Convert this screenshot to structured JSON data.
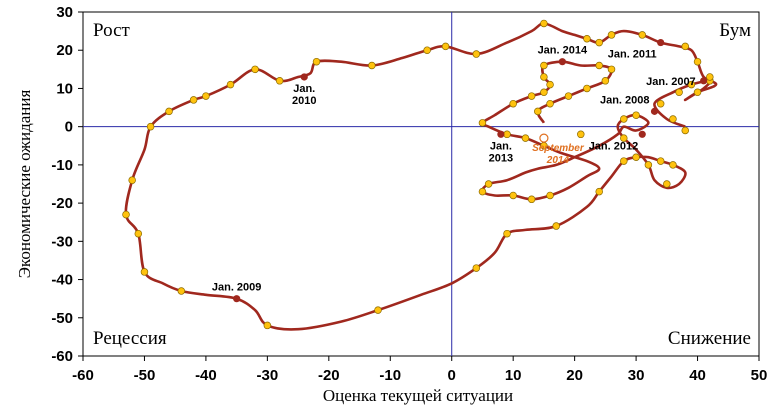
{
  "chart_data": {
    "type": "line",
    "xlabel": "Оценка текущей ситуации",
    "ylabel": "Экономические ожидания",
    "xlim": [
      -60,
      50
    ],
    "ylim": [
      -60,
      30
    ],
    "xticks": [
      -60,
      -50,
      -40,
      -30,
      -20,
      -10,
      0,
      10,
      20,
      30,
      40,
      50
    ],
    "yticks": [
      -60,
      -50,
      -40,
      -30,
      -20,
      -10,
      0,
      10,
      20,
      30
    ],
    "quadrants": [
      {
        "key": "q-tl",
        "label": "Рост"
      },
      {
        "key": "q-tr",
        "label": "Бум"
      },
      {
        "key": "q-bl",
        "label": "Рецессия"
      },
      {
        "key": "q-br",
        "label": "Снижение"
      }
    ],
    "colors": {
      "line": "#A0281E",
      "marker": "#FFC20E",
      "marker_edge": "#8A6A00",
      "key_marker": "#A0281E",
      "axis_cross": "#2B2BA8",
      "highlight": "#E07020"
    },
    "grid": false,
    "series": [
      {
        "points": [
          [
            38,
            0
          ],
          [
            35,
            2
          ],
          [
            33,
            6
          ],
          [
            36,
            9
          ],
          [
            39,
            11
          ],
          [
            42,
            12
          ],
          [
            41,
            10
          ],
          [
            39,
            8
          ],
          [
            38,
            7
          ],
          [
            40,
            9
          ],
          [
            43,
            11
          ],
          [
            41,
            13
          ],
          [
            40,
            17
          ],
          [
            39,
            20
          ],
          [
            37,
            21
          ],
          [
            34,
            22
          ],
          [
            31,
            24
          ],
          [
            28,
            25
          ],
          [
            26,
            24
          ],
          [
            24,
            22
          ],
          [
            22,
            23
          ],
          [
            20,
            24
          ],
          [
            18,
            25
          ],
          [
            15,
            27
          ],
          [
            13,
            25
          ],
          [
            9,
            22
          ],
          [
            4,
            19
          ],
          [
            -1,
            21
          ],
          [
            -4,
            20
          ],
          [
            -8,
            18
          ],
          [
            -13,
            16
          ],
          [
            -18,
            17
          ],
          [
            -22,
            17
          ],
          [
            -23,
            14
          ],
          [
            -25,
            13
          ],
          [
            -28,
            12
          ],
          [
            -32,
            15
          ],
          [
            -36,
            11
          ],
          [
            -40,
            8
          ],
          [
            -42,
            7
          ],
          [
            -46,
            4
          ],
          [
            -49,
            0
          ],
          [
            -50,
            -6
          ],
          [
            -52,
            -14
          ],
          [
            -53,
            -23
          ],
          [
            -51,
            -28
          ],
          [
            -50,
            -38
          ],
          [
            -47,
            -41
          ],
          [
            -44,
            -43
          ],
          [
            -40,
            -44
          ],
          [
            -35,
            -45
          ],
          [
            -32,
            -48
          ],
          [
            -30,
            -52
          ],
          [
            -25,
            -53
          ],
          [
            -18,
            -51
          ],
          [
            -12,
            -48
          ],
          [
            -5,
            -44
          ],
          [
            0,
            -41
          ],
          [
            4,
            -37
          ],
          [
            7,
            -33
          ],
          [
            9,
            -28
          ],
          [
            12,
            -27
          ],
          [
            17,
            -26
          ],
          [
            22,
            -21
          ],
          [
            24,
            -17
          ],
          [
            26,
            -13
          ],
          [
            28,
            -9
          ],
          [
            30,
            -8
          ],
          [
            32,
            -8
          ],
          [
            34,
            -9
          ],
          [
            36,
            -10
          ],
          [
            38,
            -12
          ],
          [
            37,
            -15
          ],
          [
            35,
            -16
          ],
          [
            33,
            -14
          ],
          [
            32,
            -10
          ],
          [
            30,
            -6
          ],
          [
            28,
            -3
          ],
          [
            27,
            0
          ],
          [
            28,
            2
          ],
          [
            30,
            3
          ],
          [
            32,
            1
          ],
          [
            30,
            -1
          ],
          [
            28,
            0
          ],
          [
            27,
            -2
          ],
          [
            24,
            -5
          ],
          [
            20,
            -8
          ],
          [
            17,
            -10
          ],
          [
            14,
            -11
          ],
          [
            12,
            -12
          ],
          [
            9,
            -14
          ],
          [
            6,
            -15
          ],
          [
            5,
            -17
          ],
          [
            7,
            -18
          ],
          [
            10,
            -18
          ],
          [
            13,
            -19
          ],
          [
            16,
            -18
          ],
          [
            19,
            -16
          ],
          [
            22,
            -13
          ],
          [
            24,
            -11
          ],
          [
            22,
            -9
          ],
          [
            18,
            -7
          ],
          [
            15,
            -5
          ],
          [
            12,
            -3
          ],
          [
            9,
            -2
          ],
          [
            6,
            0
          ],
          [
            5,
            1
          ],
          [
            7,
            3
          ],
          [
            10,
            6
          ],
          [
            13,
            8
          ],
          [
            15,
            9
          ],
          [
            16,
            11
          ],
          [
            15,
            13
          ],
          [
            15,
            16
          ],
          [
            18,
            17
          ],
          [
            21,
            16
          ],
          [
            24,
            16
          ],
          [
            26,
            15
          ],
          [
            25,
            12
          ],
          [
            22,
            10
          ],
          [
            19,
            8
          ],
          [
            16,
            6
          ],
          [
            14,
            4
          ],
          [
            15,
            1
          ]
        ],
        "markers": [
          [
            38,
            -1
          ],
          [
            36,
            2
          ],
          [
            34,
            6
          ],
          [
            37,
            9
          ],
          [
            39,
            11
          ],
          [
            42,
            12
          ],
          [
            40,
            9
          ],
          [
            42,
            13
          ],
          [
            40,
            17
          ],
          [
            38,
            21
          ],
          [
            31,
            24
          ],
          [
            26,
            24
          ],
          [
            24,
            22
          ],
          [
            22,
            23
          ],
          [
            15,
            27
          ],
          [
            4,
            19
          ],
          [
            -1,
            21
          ],
          [
            -4,
            20
          ],
          [
            -13,
            16
          ],
          [
            -22,
            17
          ],
          [
            -28,
            12
          ],
          [
            -32,
            15
          ],
          [
            -36,
            11
          ],
          [
            -40,
            8
          ],
          [
            -42,
            7
          ],
          [
            -46,
            4
          ],
          [
            -49,
            0
          ],
          [
            -52,
            -14
          ],
          [
            -53,
            -23
          ],
          [
            -51,
            -28
          ],
          [
            -50,
            -38
          ],
          [
            -44,
            -43
          ],
          [
            -30,
            -52
          ],
          [
            -12,
            -48
          ],
          [
            4,
            -37
          ],
          [
            9,
            -28
          ],
          [
            17,
            -26
          ],
          [
            24,
            -17
          ],
          [
            28,
            -9
          ],
          [
            30,
            -8
          ],
          [
            34,
            -9
          ],
          [
            32,
            -10
          ],
          [
            28,
            -3
          ],
          [
            28,
            2
          ],
          [
            30,
            3
          ],
          [
            21,
            -2
          ],
          [
            15,
            -5
          ],
          [
            6,
            -15
          ],
          [
            5,
            -17
          ],
          [
            13,
            -19
          ],
          [
            16,
            -18
          ],
          [
            10,
            -18
          ],
          [
            5,
            1
          ],
          [
            10,
            6
          ],
          [
            13,
            8
          ],
          [
            15,
            9
          ],
          [
            16,
            11
          ],
          [
            15,
            13
          ],
          [
            15,
            16
          ],
          [
            24,
            16
          ],
          [
            26,
            15
          ],
          [
            25,
            12
          ],
          [
            22,
            10
          ],
          [
            19,
            8
          ],
          [
            16,
            6
          ],
          [
            14,
            4
          ],
          [
            12,
            -3
          ],
          [
            9,
            -2
          ],
          [
            35,
            -15
          ],
          [
            36,
            -10
          ]
        ]
      }
    ],
    "annotations": [
      {
        "key": "ann-jan-2009",
        "label": "Jan. 2009",
        "point": [
          -35,
          -45
        ],
        "anchor": "label-above"
      },
      {
        "key": "ann-jan-2010",
        "label": "Jan.\n2010",
        "point": [
          -24,
          13
        ],
        "anchor": "label-below"
      },
      {
        "key": "ann-jan-2011",
        "label": "Jan. 2011",
        "point": [
          34,
          22
        ],
        "anchor": "label-left-below"
      },
      {
        "key": "ann-jan-2007",
        "label": "Jan. 2007",
        "point": [
          41,
          12
        ],
        "anchor": "label-left"
      },
      {
        "key": "ann-jan-2008",
        "label": "Jan. 2008",
        "point": [
          33,
          4
        ],
        "anchor": "label-left-above"
      },
      {
        "key": "ann-jan-2012",
        "label": "Jan. 2012",
        "point": [
          31,
          -2
        ],
        "anchor": "label-left-below"
      },
      {
        "key": "ann-jan-2013",
        "label": "Jan.\n2013",
        "point": [
          8,
          -2
        ],
        "anchor": "label-below"
      },
      {
        "key": "ann-jan-2014",
        "label": "Jan. 2014",
        "point": [
          18,
          17
        ],
        "anchor": "label-above"
      },
      {
        "key": "ann-sep-2014",
        "label": "September\n2014",
        "point": [
          15,
          -3
        ],
        "anchor": "label-below",
        "highlight": true
      }
    ]
  }
}
